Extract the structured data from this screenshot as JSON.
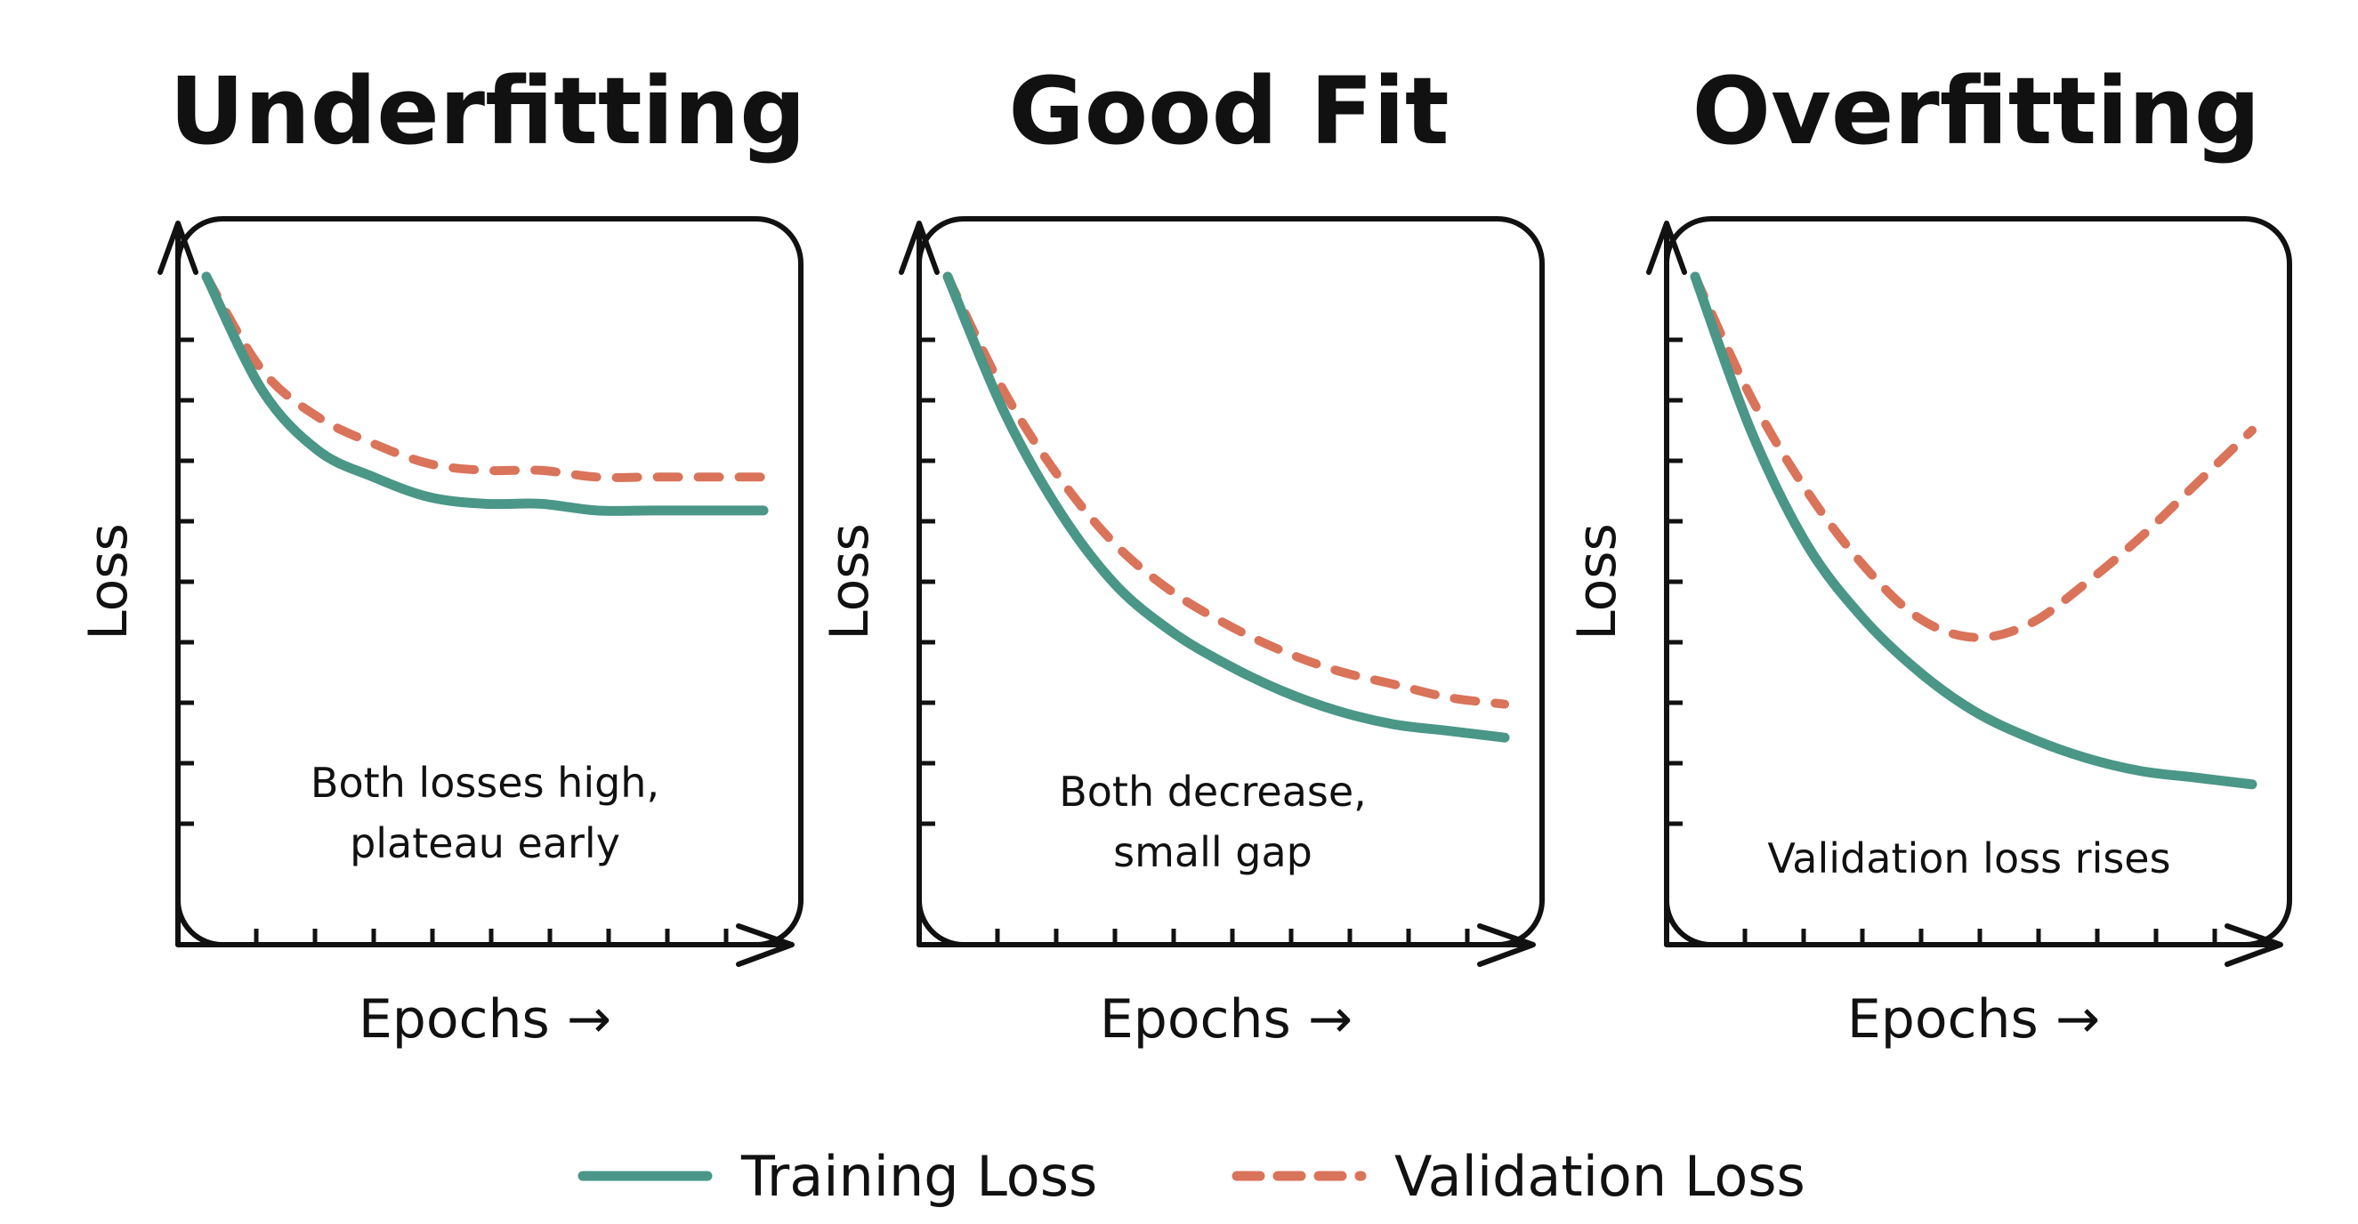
{
  "colors": {
    "training": "#4a9687",
    "validation": "#d9735a"
  },
  "legend": {
    "training": "Training Loss",
    "validation": "Validation Loss",
    "placement": "bottom"
  },
  "chart_data": [
    {
      "type": "line",
      "title": "Underfitting",
      "xlabel": "Epochs →",
      "ylabel": "Loss",
      "annotation": [
        "Both losses high,",
        "plateau early"
      ],
      "x": [
        0,
        1,
        2,
        3,
        4,
        5,
        6,
        7,
        8,
        9,
        10
      ],
      "ylim": [
        0,
        1
      ],
      "grid": false,
      "series": [
        {
          "name": "Training Loss",
          "values": [
            1.0,
            0.83,
            0.74,
            0.7,
            0.67,
            0.66,
            0.66,
            0.65,
            0.65,
            0.65,
            0.65
          ]
        },
        {
          "name": "Validation Loss",
          "values": [
            1.0,
            0.86,
            0.79,
            0.75,
            0.72,
            0.71,
            0.71,
            0.7,
            0.7,
            0.7,
            0.7
          ]
        }
      ]
    },
    {
      "type": "line",
      "title": "Good Fit",
      "xlabel": "Epochs →",
      "ylabel": "Loss",
      "annotation": [
        "Both decrease,",
        "small gap"
      ],
      "x": [
        0,
        1,
        2,
        3,
        4,
        5,
        6,
        7,
        8,
        9,
        10
      ],
      "ylim": [
        0,
        1
      ],
      "grid": false,
      "series": [
        {
          "name": "Training Loss",
          "values": [
            1.0,
            0.8,
            0.65,
            0.54,
            0.47,
            0.42,
            0.38,
            0.35,
            0.33,
            0.32,
            0.31
          ]
        },
        {
          "name": "Validation Loss",
          "values": [
            1.0,
            0.83,
            0.7,
            0.6,
            0.53,
            0.48,
            0.44,
            0.41,
            0.39,
            0.37,
            0.36
          ]
        }
      ]
    },
    {
      "type": "line",
      "title": "Overfitting",
      "xlabel": "Epochs →",
      "ylabel": "Loss",
      "annotation": [
        "Validation loss rises"
      ],
      "x": [
        0,
        1,
        2,
        3,
        4,
        5,
        6,
        7,
        8,
        9,
        10
      ],
      "ylim": [
        0,
        1
      ],
      "grid": false,
      "series": [
        {
          "name": "Training Loss",
          "values": [
            1.0,
            0.77,
            0.6,
            0.49,
            0.41,
            0.35,
            0.31,
            0.28,
            0.26,
            0.25,
            0.24
          ]
        },
        {
          "name": "Validation Loss",
          "values": [
            1.0,
            0.82,
            0.68,
            0.57,
            0.49,
            0.46,
            0.48,
            0.54,
            0.61,
            0.69,
            0.77
          ]
        }
      ]
    }
  ]
}
